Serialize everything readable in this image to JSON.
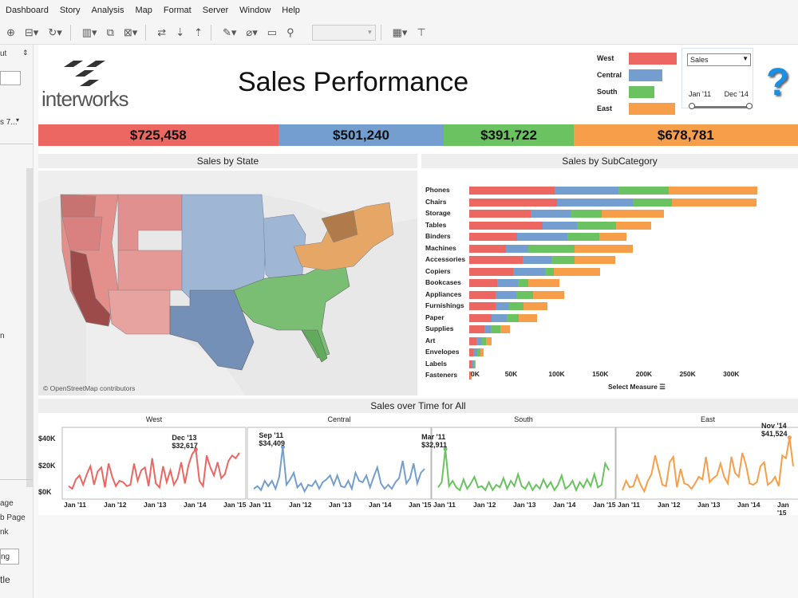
{
  "menu": [
    "Dashboard",
    "Story",
    "Analysis",
    "Map",
    "Format",
    "Server",
    "Window",
    "Help"
  ],
  "left_pane": {
    "top_label": "ut",
    "field_label": "s 7...",
    "letters": [
      "n"
    ],
    "bottom_items": [
      "age",
      "b Page",
      "nk"
    ],
    "button_label": "ng",
    "footer_label": "tle"
  },
  "logo": {
    "text": "interworks"
  },
  "title": "Sales Performance",
  "colors": {
    "West": "#ec6762",
    "Central": "#739ecf",
    "South": "#6ac260",
    "East": "#f79e4a"
  },
  "legend": [
    {
      "name": "West",
      "width": 60
    },
    {
      "name": "Central",
      "width": 42
    },
    {
      "name": "South",
      "width": 32
    },
    {
      "name": "East",
      "width": 58
    }
  ],
  "filter": {
    "measure_value": "Sales",
    "date_start": "Jan '11",
    "date_end": "Dec '14"
  },
  "totals": [
    {
      "region": "West",
      "label": "$725,458",
      "value": 725458
    },
    {
      "region": "Central",
      "label": "$501,240",
      "value": 501240
    },
    {
      "region": "South",
      "label": "$391,722",
      "value": 391722
    },
    {
      "region": "East",
      "label": "$678,781",
      "value": 678781
    }
  ],
  "map": {
    "title": "Sales by State",
    "attribution": "© OpenStreetMap contributors"
  },
  "chart_data": [
    {
      "type": "bar",
      "title": "Sales by SubCategory",
      "stacked": true,
      "orientation": "horizontal",
      "categories": [
        "Phones",
        "Chairs",
        "Storage",
        "Tables",
        "Binders",
        "Machines",
        "Accessories",
        "Copiers",
        "Bookcases",
        "Appliances",
        "Furnishings",
        "Paper",
        "Supplies",
        "Art",
        "Envelopes",
        "Labels",
        "Fasteners"
      ],
      "series": [
        {
          "name": "West",
          "values": [
            98000,
            101000,
            70000,
            84000,
            55000,
            42000,
            61000,
            50000,
            32000,
            30000,
            30000,
            26000,
            17000,
            8000,
            5000,
            3000,
            700
          ]
        },
        {
          "name": "Central",
          "values": [
            73000,
            86000,
            46000,
            39000,
            57000,
            26000,
            33000,
            37000,
            24000,
            24000,
            16000,
            17000,
            8000,
            6000,
            4000,
            2000,
            500
          ]
        },
        {
          "name": "South",
          "values": [
            58000,
            45000,
            36000,
            45000,
            37000,
            53000,
            27000,
            10000,
            12000,
            19000,
            16000,
            14000,
            11000,
            5000,
            4000,
            1000,
            400
          ]
        },
        {
          "name": "East",
          "values": [
            101000,
            97000,
            71000,
            40000,
            31000,
            66000,
            46000,
            53000,
            35000,
            36000,
            28000,
            21000,
            11000,
            7000,
            3000,
            1000,
            600
          ]
        }
      ],
      "xlim": [
        0,
        320000
      ],
      "ticks": [
        "0K",
        "50K",
        "100K",
        "150K",
        "200K",
        "250K",
        "300K"
      ],
      "footer": "Select Measure"
    },
    {
      "type": "line",
      "title": "Sales over Time for All",
      "x_ticks": [
        "Jan '11",
        "Jan '12",
        "Jan '13",
        "Jan '14",
        "Jan '15"
      ],
      "y_ticks": [
        "$40K",
        "$20K",
        "$0K"
      ],
      "ylim": [
        0,
        45000
      ],
      "series": [
        {
          "name": "West",
          "annotation": {
            "date": "Dec '13",
            "value": "$32,617",
            "index": 35
          },
          "values": [
            5000,
            3000,
            10000,
            13000,
            6000,
            14000,
            20000,
            6000,
            16000,
            19000,
            4000,
            22000,
            12000,
            5000,
            9000,
            8000,
            5000,
            6000,
            22000,
            9000,
            17000,
            19000,
            5000,
            26000,
            7000,
            4000,
            20000,
            8000,
            17000,
            6000,
            11000,
            23000,
            7000,
            21000,
            29000,
            32617,
            9000,
            5000,
            28000,
            19000,
            13000,
            23000,
            11000,
            14000,
            24000,
            28000,
            26000,
            30000
          ]
        },
        {
          "name": "Central",
          "annotation": {
            "date": "Sep '11",
            "value": "$34,409",
            "index": 8
          },
          "values": [
            3000,
            5000,
            2000,
            9000,
            5000,
            9000,
            3000,
            12000,
            34409,
            6000,
            10000,
            15000,
            4000,
            7000,
            1000,
            6000,
            5000,
            9000,
            3000,
            8000,
            10000,
            13000,
            6000,
            13000,
            5000,
            4000,
            9000,
            3000,
            15000,
            9000,
            8000,
            13000,
            4000,
            12000,
            19000,
            7000,
            3000,
            6000,
            3000,
            8000,
            11000,
            24000,
            7000,
            11000,
            22000,
            7000,
            15000,
            18000
          ]
        },
        {
          "name": "South",
          "annotation": {
            "date": "Mar '11",
            "value": "$32,911",
            "index": 2
          },
          "values": [
            4000,
            8000,
            32911,
            5000,
            9000,
            4000,
            2000,
            10000,
            3000,
            7000,
            12000,
            4000,
            5000,
            2000,
            8000,
            2000,
            6000,
            4000,
            11000,
            3000,
            9000,
            5000,
            14000,
            5000,
            3000,
            8000,
            2000,
            6000,
            3000,
            10000,
            4000,
            8000,
            2000,
            6000,
            13000,
            3000,
            5000,
            9000,
            2000,
            8000,
            4000,
            10000,
            5000,
            14000,
            4000,
            6000,
            22000,
            17000
          ]
        },
        {
          "name": "East",
          "annotation": {
            "date": "Nov '14",
            "value": "$41,524",
            "index": 46
          },
          "values": [
            2000,
            9000,
            4000,
            5000,
            13000,
            6000,
            1000,
            9000,
            14000,
            28000,
            17000,
            6000,
            5000,
            23000,
            27000,
            4000,
            18000,
            7000,
            6000,
            3000,
            7000,
            12000,
            10000,
            27000,
            8000,
            11000,
            13000,
            22000,
            12000,
            7000,
            27000,
            15000,
            12000,
            30000,
            21000,
            7000,
            6000,
            8000,
            20000,
            23000,
            6000,
            8000,
            12000,
            5000,
            28000,
            26000,
            41524,
            20000
          ]
        }
      ]
    }
  ]
}
